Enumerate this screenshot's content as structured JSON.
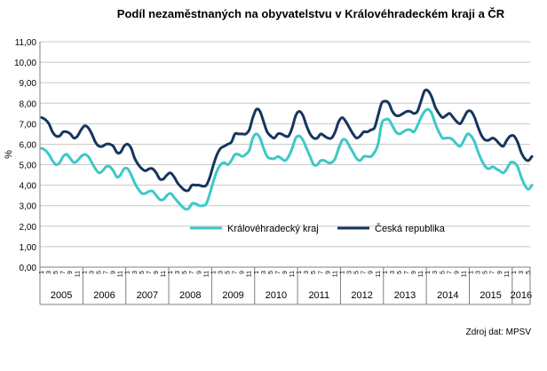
{
  "chart_data": {
    "type": "line",
    "title": "Podíl nezaměstnaných na obyvatelstvu v Královéhradeckém kraji a ČR",
    "xlabel": "",
    "ylabel": "%",
    "ylim": [
      0,
      11
    ],
    "y_ticks": [
      "0,00",
      "1,00",
      "2,00",
      "3,00",
      "4,00",
      "5,00",
      "6,00",
      "7,00",
      "8,00",
      "9,00",
      "10,00",
      "11,00"
    ],
    "years": [
      "2005",
      "2006",
      "2007",
      "2008",
      "2009",
      "2010",
      "2011",
      "2012",
      "2013",
      "2014",
      "2015",
      "2016"
    ],
    "months_per_year": [
      12,
      12,
      12,
      12,
      12,
      12,
      12,
      12,
      12,
      12,
      12,
      5
    ],
    "month_tick_labels": [
      "1",
      "3",
      "5",
      "7",
      "9",
      "11"
    ],
    "legend_position": "center",
    "source_note": "Zdroj dat: MPSV",
    "colors": {
      "kraj": "#3cc8c8",
      "cr": "#16355e",
      "grid": "#c8c8c8",
      "axis": "#7f7f7f"
    },
    "series": [
      {
        "name": "Královéhradecký kraj",
        "values": [
          5.8,
          5.7,
          5.5,
          5.2,
          5.0,
          5.1,
          5.4,
          5.5,
          5.3,
          5.1,
          5.2,
          5.4,
          5.5,
          5.4,
          5.1,
          4.8,
          4.6,
          4.7,
          4.9,
          4.9,
          4.7,
          4.4,
          4.5,
          4.8,
          4.8,
          4.5,
          4.1,
          3.8,
          3.6,
          3.6,
          3.7,
          3.7,
          3.5,
          3.3,
          3.3,
          3.5,
          3.6,
          3.4,
          3.2,
          3.0,
          2.85,
          2.85,
          3.1,
          3.1,
          3.0,
          3.0,
          3.1,
          3.6,
          4.2,
          4.7,
          5.0,
          5.1,
          5.0,
          5.2,
          5.5,
          5.5,
          5.4,
          5.5,
          5.7,
          6.3,
          6.5,
          6.3,
          5.8,
          5.4,
          5.3,
          5.3,
          5.4,
          5.3,
          5.2,
          5.4,
          5.8,
          6.3,
          6.4,
          6.2,
          5.8,
          5.4,
          5.0,
          5.0,
          5.2,
          5.2,
          5.1,
          5.1,
          5.3,
          5.8,
          6.2,
          6.2,
          5.9,
          5.6,
          5.3,
          5.2,
          5.4,
          5.4,
          5.4,
          5.6,
          6.0,
          7.0,
          7.2,
          7.2,
          6.9,
          6.6,
          6.5,
          6.6,
          6.7,
          6.7,
          6.6,
          6.9,
          7.3,
          7.6,
          7.7,
          7.5,
          7.0,
          6.6,
          6.3,
          6.3,
          6.3,
          6.2,
          6.0,
          5.9,
          6.2,
          6.5,
          6.4,
          6.1,
          5.6,
          5.2,
          4.9,
          4.8,
          4.9,
          4.8,
          4.7,
          4.6,
          4.8,
          5.1,
          5.1,
          4.9,
          4.4,
          4.0,
          3.8,
          4.0
        ]
      },
      {
        "name": "Česká republika",
        "values": [
          7.3,
          7.2,
          7.0,
          6.6,
          6.4,
          6.4,
          6.6,
          6.6,
          6.5,
          6.3,
          6.4,
          6.7,
          6.9,
          6.8,
          6.5,
          6.1,
          5.9,
          5.9,
          6.0,
          6.0,
          5.9,
          5.6,
          5.6,
          5.9,
          6.0,
          5.8,
          5.3,
          5.0,
          4.8,
          4.7,
          4.8,
          4.8,
          4.6,
          4.3,
          4.3,
          4.5,
          4.6,
          4.4,
          4.1,
          3.9,
          3.75,
          3.75,
          4.0,
          4.0,
          4.0,
          3.95,
          4.0,
          4.4,
          5.0,
          5.5,
          5.8,
          5.9,
          6.0,
          6.1,
          6.5,
          6.5,
          6.5,
          6.5,
          6.7,
          7.3,
          7.7,
          7.6,
          7.1,
          6.6,
          6.4,
          6.3,
          6.5,
          6.5,
          6.4,
          6.4,
          6.8,
          7.4,
          7.6,
          7.4,
          6.9,
          6.5,
          6.3,
          6.3,
          6.5,
          6.4,
          6.3,
          6.3,
          6.6,
          7.1,
          7.3,
          7.1,
          6.8,
          6.5,
          6.3,
          6.4,
          6.6,
          6.6,
          6.7,
          6.8,
          7.4,
          8.0,
          8.1,
          8.0,
          7.6,
          7.4,
          7.4,
          7.5,
          7.6,
          7.6,
          7.5,
          7.6,
          8.1,
          8.6,
          8.6,
          8.3,
          7.8,
          7.5,
          7.3,
          7.4,
          7.5,
          7.3,
          7.1,
          7.0,
          7.3,
          7.6,
          7.6,
          7.3,
          6.8,
          6.4,
          6.2,
          6.2,
          6.3,
          6.2,
          6.0,
          5.9,
          6.2,
          6.4,
          6.4,
          6.1,
          5.6,
          5.3,
          5.2,
          5.4
        ]
      }
    ]
  }
}
